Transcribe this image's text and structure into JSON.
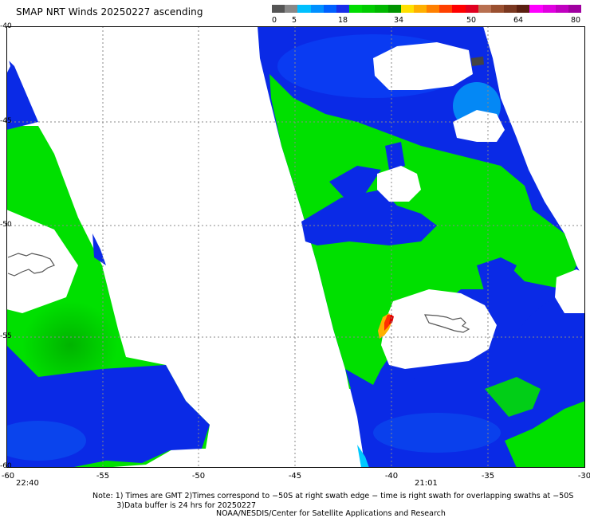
{
  "title": "SMAP NRT Winds 20250227 ascending",
  "colorbar": {
    "segments": [
      {
        "color": "#555555"
      },
      {
        "color": "#888888"
      },
      {
        "color": "#00c0ff"
      },
      {
        "color": "#0090ff"
      },
      {
        "color": "#0060ff"
      },
      {
        "color": "#1a2ee8"
      },
      {
        "color": "#00dd00"
      },
      {
        "color": "#00cc00"
      },
      {
        "color": "#00b800"
      },
      {
        "color": "#009400"
      },
      {
        "color": "#ffe000"
      },
      {
        "color": "#ffb000"
      },
      {
        "color": "#ff8000"
      },
      {
        "color": "#ff4000"
      },
      {
        "color": "#ff0000"
      },
      {
        "color": "#e00020"
      },
      {
        "color": "#b87050"
      },
      {
        "color": "#9a5030"
      },
      {
        "color": "#7a3820"
      },
      {
        "color": "#5a2010"
      },
      {
        "color": "#ff00ff"
      },
      {
        "color": "#e000e0"
      },
      {
        "color": "#c000c0"
      },
      {
        "color": "#a000a0"
      }
    ],
    "labels": [
      "0",
      "5",
      "18",
      "34",
      "50",
      "64",
      "80"
    ]
  },
  "x_ticks": [
    "-60",
    "-55",
    "-50",
    "-45",
    "-40",
    "-35",
    "-30"
  ],
  "y_ticks": [
    "-40",
    "-45",
    "-50",
    "-55",
    "-60"
  ],
  "times": [
    "22:40",
    "21:01"
  ],
  "note": "Note: 1) Times are GMT 2)Times correspond to −50S at right swath edge − time is right swath for overlapping swaths at −50S\n          3)Data buffer is 24 hrs for 20250227",
  "credit": "NOAA/NESDIS/Center for Satellite Applications and Research",
  "colors": {
    "low": "#0a2ae6",
    "mid": "#00e000",
    "high": "#ff6000",
    "calm": "#00c8ff"
  }
}
